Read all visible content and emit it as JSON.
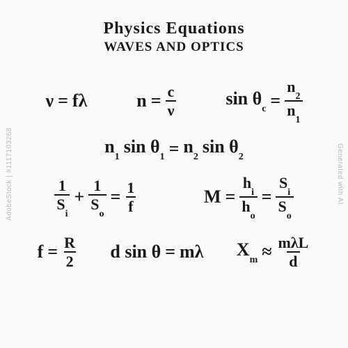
{
  "title": {
    "line1": "Physics Equations",
    "line2": "WAVES AND OPTICS"
  },
  "row1": {
    "eq1": {
      "lhs": "ν",
      "rhs": "fλ"
    },
    "eq2": {
      "lhs": "n",
      "num": "c",
      "den": "ν"
    },
    "eq3": {
      "lhs": "sin θ",
      "lsub": "c",
      "num": "n",
      "nsub": "2",
      "den": "n",
      "dsub": "1"
    }
  },
  "row2": {
    "eq": {
      "l1": "n",
      "l1s": "1",
      "l2": "sin θ",
      "l2s": "1",
      "r1": "n",
      "r1s": "2",
      "r2": "sin θ",
      "r2s": "2"
    }
  },
  "row3": {
    "eq1": {
      "n1": "1",
      "d1": "S",
      "d1s": "i",
      "n2": "1",
      "d2": "S",
      "d2s": "o",
      "n3": "1",
      "d3": "f"
    },
    "eq2": {
      "lhs": "M",
      "n1": "h",
      "n1s": "i",
      "d1": "h",
      "d1s": "o",
      "n2": "S",
      "n2s": "i",
      "d2": "S",
      "d2s": "o"
    }
  },
  "row4": {
    "eq1": {
      "lhs": "f",
      "num": "R",
      "den": "2"
    },
    "eq2": {
      "lhs": "d sin θ",
      "rhs": "mλ"
    },
    "eq3": {
      "lhs": "X",
      "lsub": "m",
      "num": "mλL",
      "den": "d"
    }
  },
  "watermark": {
    "left": "AdobeStock | #1117103268",
    "right": "Generated with AI"
  },
  "style": {
    "bg": "#fafafa",
    "fg": "#1a1a1a",
    "title_fontsize": 24,
    "subtitle_fontsize": 19,
    "eq_fontsize": 26,
    "frac_fontsize": 22,
    "sub_fontsize": 14,
    "font_family": "Comic Sans MS, Segoe Script, cursive",
    "watermark_color": "#b8b8b8",
    "watermark_fontsize": 10
  }
}
